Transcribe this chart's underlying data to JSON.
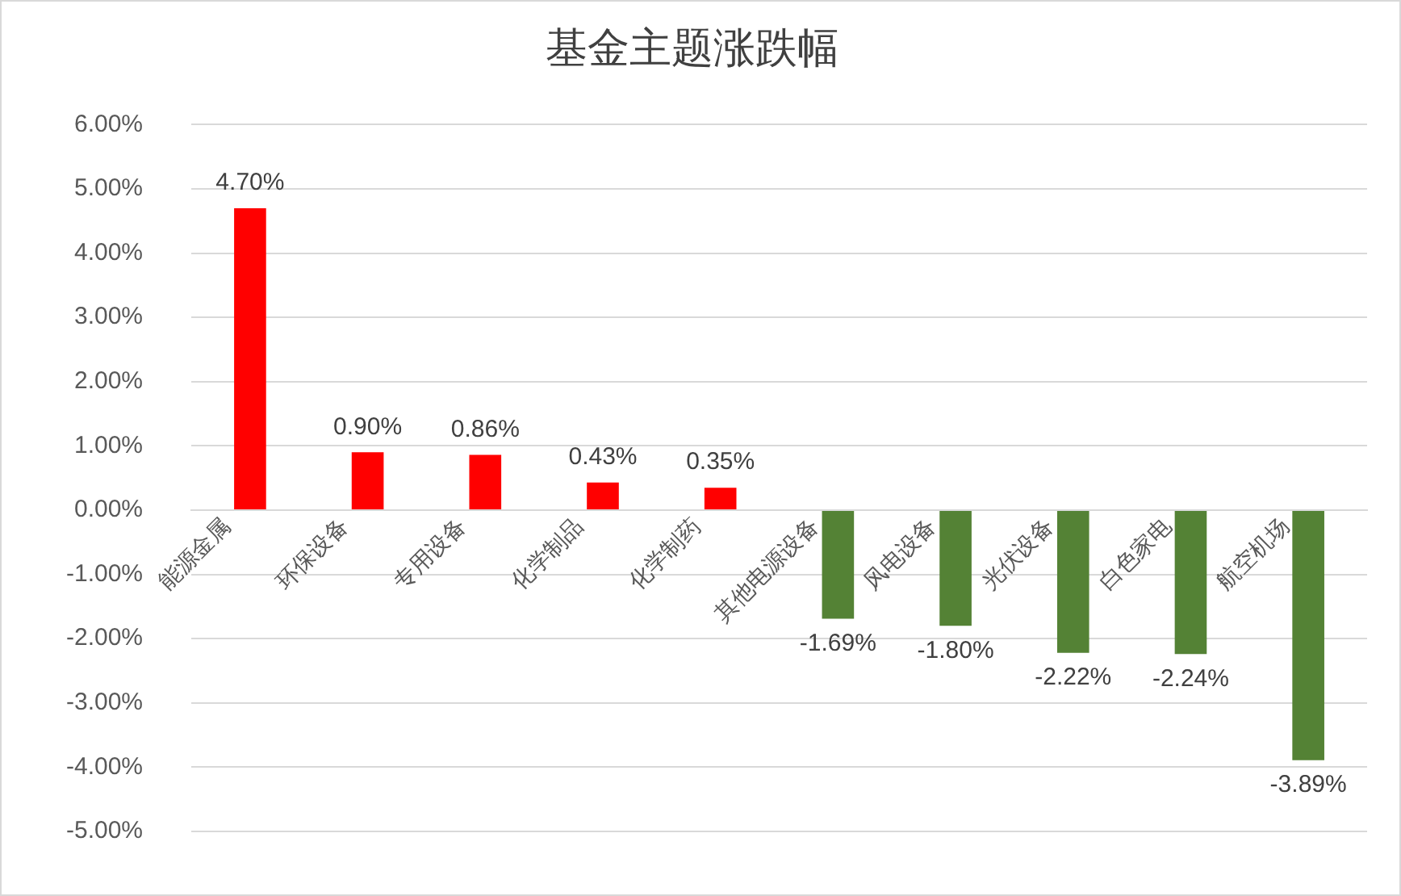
{
  "chart_data": {
    "type": "bar",
    "title": "基金主题涨跌幅",
    "categories": [
      "能源金属",
      "环保设备",
      "专用设备",
      "化学制品",
      "化学制药",
      "其他电源设备",
      "风电设备",
      "光伏设备",
      "白色家电",
      "航空机场"
    ],
    "values": [
      4.7,
      0.9,
      0.86,
      0.43,
      0.35,
      -1.69,
      -1.8,
      -2.22,
      -2.24,
      -3.89
    ],
    "value_labels": [
      "4.70%",
      "0.90%",
      "0.86%",
      "0.43%",
      "0.35%",
      "-1.69%",
      "-1.80%",
      "-2.22%",
      "-2.24%",
      "-3.89%"
    ],
    "colors": [
      "#ff0000",
      "#ff0000",
      "#ff0000",
      "#ff0000",
      "#ff0000",
      "#548235",
      "#548235",
      "#548235",
      "#548235",
      "#548235"
    ],
    "ylim": [
      -5,
      6
    ],
    "yticks": [
      {
        "value": -5,
        "label": "-5.00%"
      },
      {
        "value": -4,
        "label": "-4.00%"
      },
      {
        "value": -3,
        "label": "-3.00%"
      },
      {
        "value": -2,
        "label": "-2.00%"
      },
      {
        "value": -1,
        "label": "-1.00%"
      },
      {
        "value": 0,
        "label": "0.00%"
      },
      {
        "value": 1,
        "label": "1.00%"
      },
      {
        "value": 2,
        "label": "2.00%"
      },
      {
        "value": 3,
        "label": "3.00%"
      },
      {
        "value": 4,
        "label": "4.00%"
      },
      {
        "value": 5,
        "label": "5.00%"
      },
      {
        "value": 6,
        "label": "6.00%"
      }
    ],
    "grid": "y",
    "legend": false
  }
}
